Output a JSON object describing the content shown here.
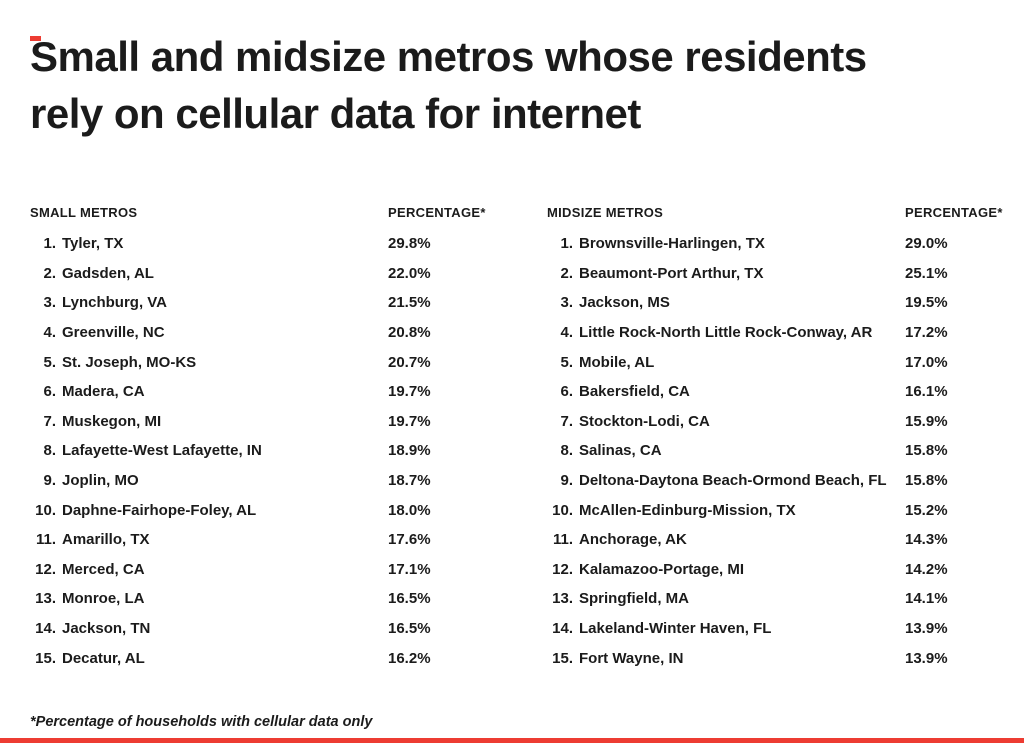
{
  "colors": {
    "accent": "#ed3c32",
    "text": "#1b1b1b",
    "background": "#ffffff"
  },
  "title_lines": [
    "Small and midsize metros whose residents",
    "rely on cellular data for internet"
  ],
  "chart_data": {
    "type": "table",
    "title": "Small and midsize metros whose residents rely on cellular data for internet",
    "footnote": "*Percentage of households with cellular data only",
    "tables": [
      {
        "columns": [
          "SMALL METROS",
          "PERCENTAGE*"
        ],
        "rows": [
          {
            "rank": "1.",
            "metro": "Tyler, TX",
            "pct": "29.8%"
          },
          {
            "rank": "2.",
            "metro": "Gadsden, AL",
            "pct": "22.0%"
          },
          {
            "rank": "3.",
            "metro": "Lynchburg, VA",
            "pct": "21.5%"
          },
          {
            "rank": "4.",
            "metro": "Greenville, NC",
            "pct": "20.8%"
          },
          {
            "rank": "5.",
            "metro": "St. Joseph, MO-KS",
            "pct": "20.7%"
          },
          {
            "rank": "6.",
            "metro": "Madera, CA",
            "pct": "19.7%"
          },
          {
            "rank": "7.",
            "metro": "Muskegon, MI",
            "pct": "19.7%"
          },
          {
            "rank": "8.",
            "metro": "Lafayette-West Lafayette, IN",
            "pct": "18.9%"
          },
          {
            "rank": "9.",
            "metro": "Joplin, MO",
            "pct": "18.7%"
          },
          {
            "rank": "10.",
            "metro": "Daphne-Fairhope-Foley, AL",
            "pct": "18.0%"
          },
          {
            "rank": "11.",
            "metro": "Amarillo, TX",
            "pct": "17.6%"
          },
          {
            "rank": "12.",
            "metro": "Merced, CA",
            "pct": "17.1%"
          },
          {
            "rank": "13.",
            "metro": "Monroe, LA",
            "pct": "16.5%"
          },
          {
            "rank": "14.",
            "metro": "Jackson, TN",
            "pct": "16.5%"
          },
          {
            "rank": "15.",
            "metro": "Decatur, AL",
            "pct": "16.2%"
          }
        ]
      },
      {
        "columns": [
          "MIDSIZE METROS",
          "PERCENTAGE*"
        ],
        "rows": [
          {
            "rank": "1.",
            "metro": "Brownsville-Harlingen, TX",
            "pct": "29.0%"
          },
          {
            "rank": "2.",
            "metro": "Beaumont-Port Arthur, TX",
            "pct": "25.1%"
          },
          {
            "rank": "3.",
            "metro": "Jackson, MS",
            "pct": "19.5%"
          },
          {
            "rank": "4.",
            "metro": "Little Rock-North Little Rock-Conway, AR",
            "pct": "17.2%"
          },
          {
            "rank": "5.",
            "metro": "Mobile, AL",
            "pct": "17.0%"
          },
          {
            "rank": "6.",
            "metro": "Bakersfield, CA",
            "pct": "16.1%"
          },
          {
            "rank": "7.",
            "metro": "Stockton-Lodi, CA",
            "pct": "15.9%"
          },
          {
            "rank": "8.",
            "metro": "Salinas, CA",
            "pct": "15.8%"
          },
          {
            "rank": "9.",
            "metro": "Deltona-Daytona Beach-Ormond Beach, FL",
            "pct": "15.8%"
          },
          {
            "rank": "10.",
            "metro": "McAllen-Edinburg-Mission, TX",
            "pct": "15.2%"
          },
          {
            "rank": "11.",
            "metro": "Anchorage, AK",
            "pct": "14.3%"
          },
          {
            "rank": "12.",
            "metro": "Kalamazoo-Portage, MI",
            "pct": "14.2%"
          },
          {
            "rank": "13.",
            "metro": "Springfield, MA",
            "pct": "14.1%"
          },
          {
            "rank": "14.",
            "metro": "Lakeland-Winter Haven, FL",
            "pct": "13.9%"
          },
          {
            "rank": "15.",
            "metro": "Fort Wayne, IN",
            "pct": "13.9%"
          }
        ]
      }
    ]
  }
}
